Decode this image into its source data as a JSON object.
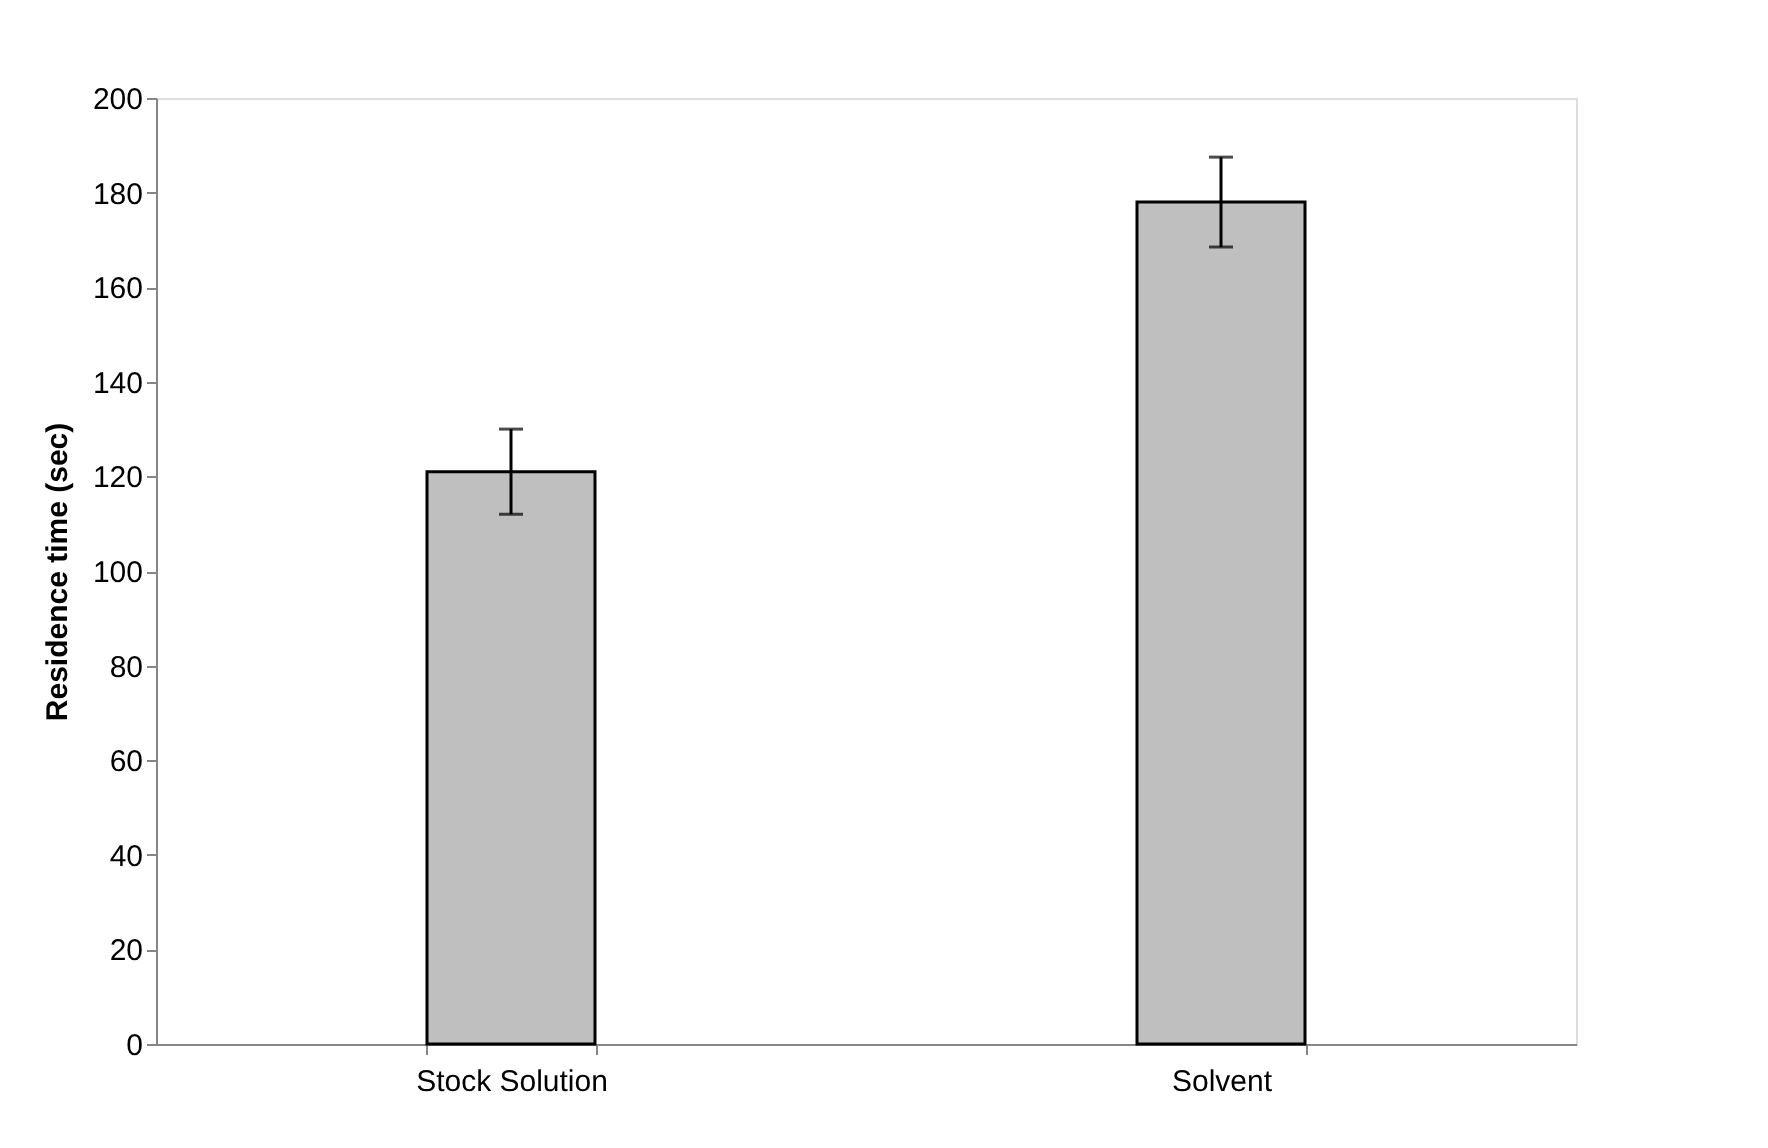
{
  "chart_data": {
    "type": "bar",
    "ylabel": "Residence time (sec)",
    "categories": [
      "Stock Solution",
      "Solvent"
    ],
    "values": [
      121,
      178
    ],
    "errors": [
      9,
      9.5
    ],
    "color": "#bfbfbf",
    "ylim": [
      0,
      200
    ],
    "yticks": [
      0,
      20,
      40,
      60,
      80,
      100,
      120,
      140,
      160,
      180,
      200
    ],
    "grid": false
  }
}
